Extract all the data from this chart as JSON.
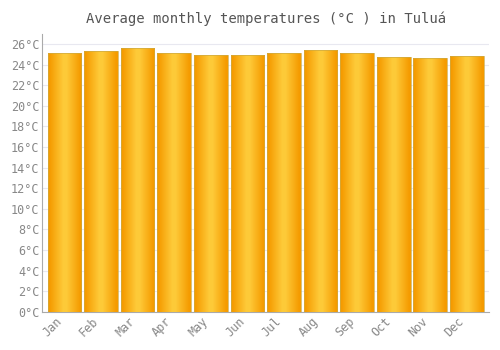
{
  "title": "Average monthly temperatures (°C ) in Tuluá",
  "months": [
    "Jan",
    "Feb",
    "Mar",
    "Apr",
    "May",
    "Jun",
    "Jul",
    "Aug",
    "Sep",
    "Oct",
    "Nov",
    "Dec"
  ],
  "values": [
    25.1,
    25.3,
    25.6,
    25.1,
    24.9,
    24.9,
    25.1,
    25.4,
    25.1,
    24.7,
    24.6,
    24.8
  ],
  "bar_color_center": "#FFD040",
  "bar_color_edge": "#F59B00",
  "background_color": "#FFFFFF",
  "plot_bg_color": "#FFFFFF",
  "grid_color": "#E8E8F0",
  "border_color": "#AAAAAA",
  "ylim": [
    0,
    27
  ],
  "ytick_step": 2,
  "title_fontsize": 10,
  "tick_fontsize": 8.5,
  "title_color": "#555555",
  "tick_color": "#888888"
}
